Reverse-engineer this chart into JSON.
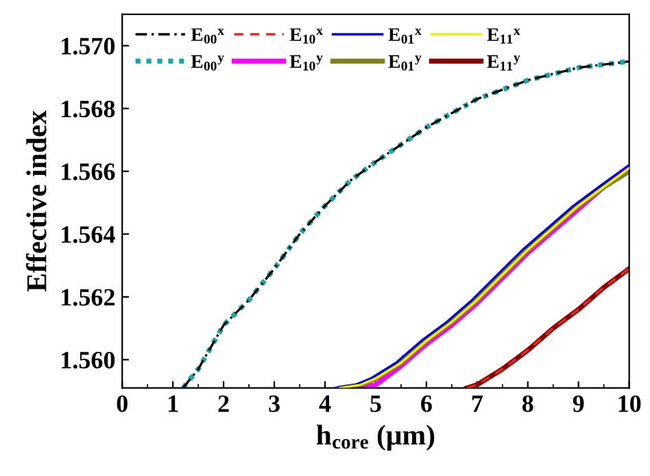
{
  "chart_data": {
    "type": "line",
    "xlabel": "h$_{core}$ (μm)",
    "ylabel": "Effective index",
    "xlim": [
      0,
      10
    ],
    "xticks": [
      0,
      1,
      2,
      3,
      4,
      5,
      6,
      7,
      8,
      9,
      10
    ],
    "ylim": [
      1.5591,
      1.571
    ],
    "yticks": [
      {
        "value": 1.56,
        "label": "1.560"
      },
      {
        "value": 1.562,
        "label": "1.562"
      },
      {
        "value": 1.564,
        "label": "1.564"
      },
      {
        "value": 1.566,
        "label": "1.566"
      },
      {
        "value": 1.568,
        "label": "1.568"
      },
      {
        "value": 1.57,
        "label": "1.570"
      }
    ],
    "grid": false,
    "legend": "top left",
    "marker": "none",
    "series": [
      {
        "name": "E$_{00}$$^{x}$",
        "color": "#000000",
        "line_style": "dashdot",
        "x": [
          1.2,
          1.5,
          2,
          2.5,
          3,
          3.5,
          4,
          4.5,
          5,
          6,
          7,
          8,
          9,
          10
        ],
        "values": [
          1.5591,
          1.5597,
          1.5611,
          1.5619,
          1.5629,
          1.564,
          1.5649,
          1.5657,
          1.5663,
          1.5674,
          1.5683,
          1.5689,
          1.5693,
          1.5695
        ]
      },
      {
        "name": "E$_{10}$$^{x}$",
        "color": "#e8281e",
        "line_style": "dashed",
        "x": [
          6.8,
          7,
          7.5,
          8,
          8.5,
          9,
          9.5,
          10
        ],
        "values": [
          1.5591,
          1.5592,
          1.5597,
          1.5603,
          1.561,
          1.5616,
          1.5623,
          1.5629
        ]
      },
      {
        "name": "E$_{01}$$^{x}$",
        "color": "#0000e0",
        "line_style": "solid",
        "x": [
          4.2,
          4.6,
          4.9,
          5.4,
          5.9,
          6.4,
          6.9,
          7.4,
          7.9,
          8.4,
          8.9,
          9.4,
          10
        ],
        "values": [
          1.5591,
          1.5592,
          1.5594,
          1.5599,
          1.5606,
          1.5612,
          1.5619,
          1.5627,
          1.5635,
          1.5642,
          1.5649,
          1.5655,
          1.5662
        ]
      },
      {
        "name": "E$_{11}$$^{x}$",
        "color": "#f0f000",
        "line_style": "solid",
        "x": [
          4.3,
          4.7,
          5,
          5.5,
          6,
          6.5,
          7,
          7.5,
          8,
          8.5,
          9,
          9.5,
          10
        ],
        "values": [
          1.5591,
          1.5592,
          1.5594,
          1.5599,
          1.5606,
          1.5612,
          1.5619,
          1.5627,
          1.5635,
          1.5642,
          1.5649,
          1.5655,
          1.5661
        ]
      },
      {
        "name": "E$_{00}$$^{y}$",
        "color": "#1aa6a6",
        "line_style": "dotted",
        "x": [
          1.2,
          1.5,
          2,
          2.5,
          3,
          3.5,
          4,
          4.5,
          5,
          6,
          7,
          8,
          9,
          10
        ],
        "values": [
          1.5591,
          1.5597,
          1.5611,
          1.5619,
          1.5629,
          1.564,
          1.5649,
          1.5657,
          1.5663,
          1.5674,
          1.5683,
          1.5689,
          1.5693,
          1.5695
        ]
      },
      {
        "name": "E$_{10}$$^{y}$",
        "color": "#ff00ff",
        "line_style": "solid",
        "x": [
          4.7,
          5,
          5.5,
          6,
          6.5,
          7,
          7.5,
          8,
          8.5,
          9,
          9.5,
          10
        ],
        "values": [
          1.5591,
          1.5592,
          1.5598,
          1.5605,
          1.5611,
          1.5618,
          1.5626,
          1.5634,
          1.5641,
          1.5648,
          1.5655,
          1.5661
        ]
      },
      {
        "name": "E$_{01}$$^{y}$",
        "color": "#808020",
        "line_style": "solid",
        "x": [
          4.3,
          4.7,
          5,
          5.5,
          6,
          6.5,
          7,
          7.5,
          8,
          8.5,
          9,
          9.5,
          10
        ],
        "values": [
          1.5591,
          1.5592,
          1.5594,
          1.5599,
          1.5606,
          1.5612,
          1.5619,
          1.5627,
          1.5635,
          1.5642,
          1.5649,
          1.5655,
          1.566
        ]
      },
      {
        "name": "E$_{11}$$^{y}$",
        "color": "#8b0000",
        "line_style": "solid",
        "x": [
          6.8,
          7,
          7.5,
          8,
          8.5,
          9,
          9.5,
          10
        ],
        "values": [
          1.5591,
          1.5592,
          1.5597,
          1.5603,
          1.561,
          1.5616,
          1.5623,
          1.5629
        ]
      }
    ]
  }
}
